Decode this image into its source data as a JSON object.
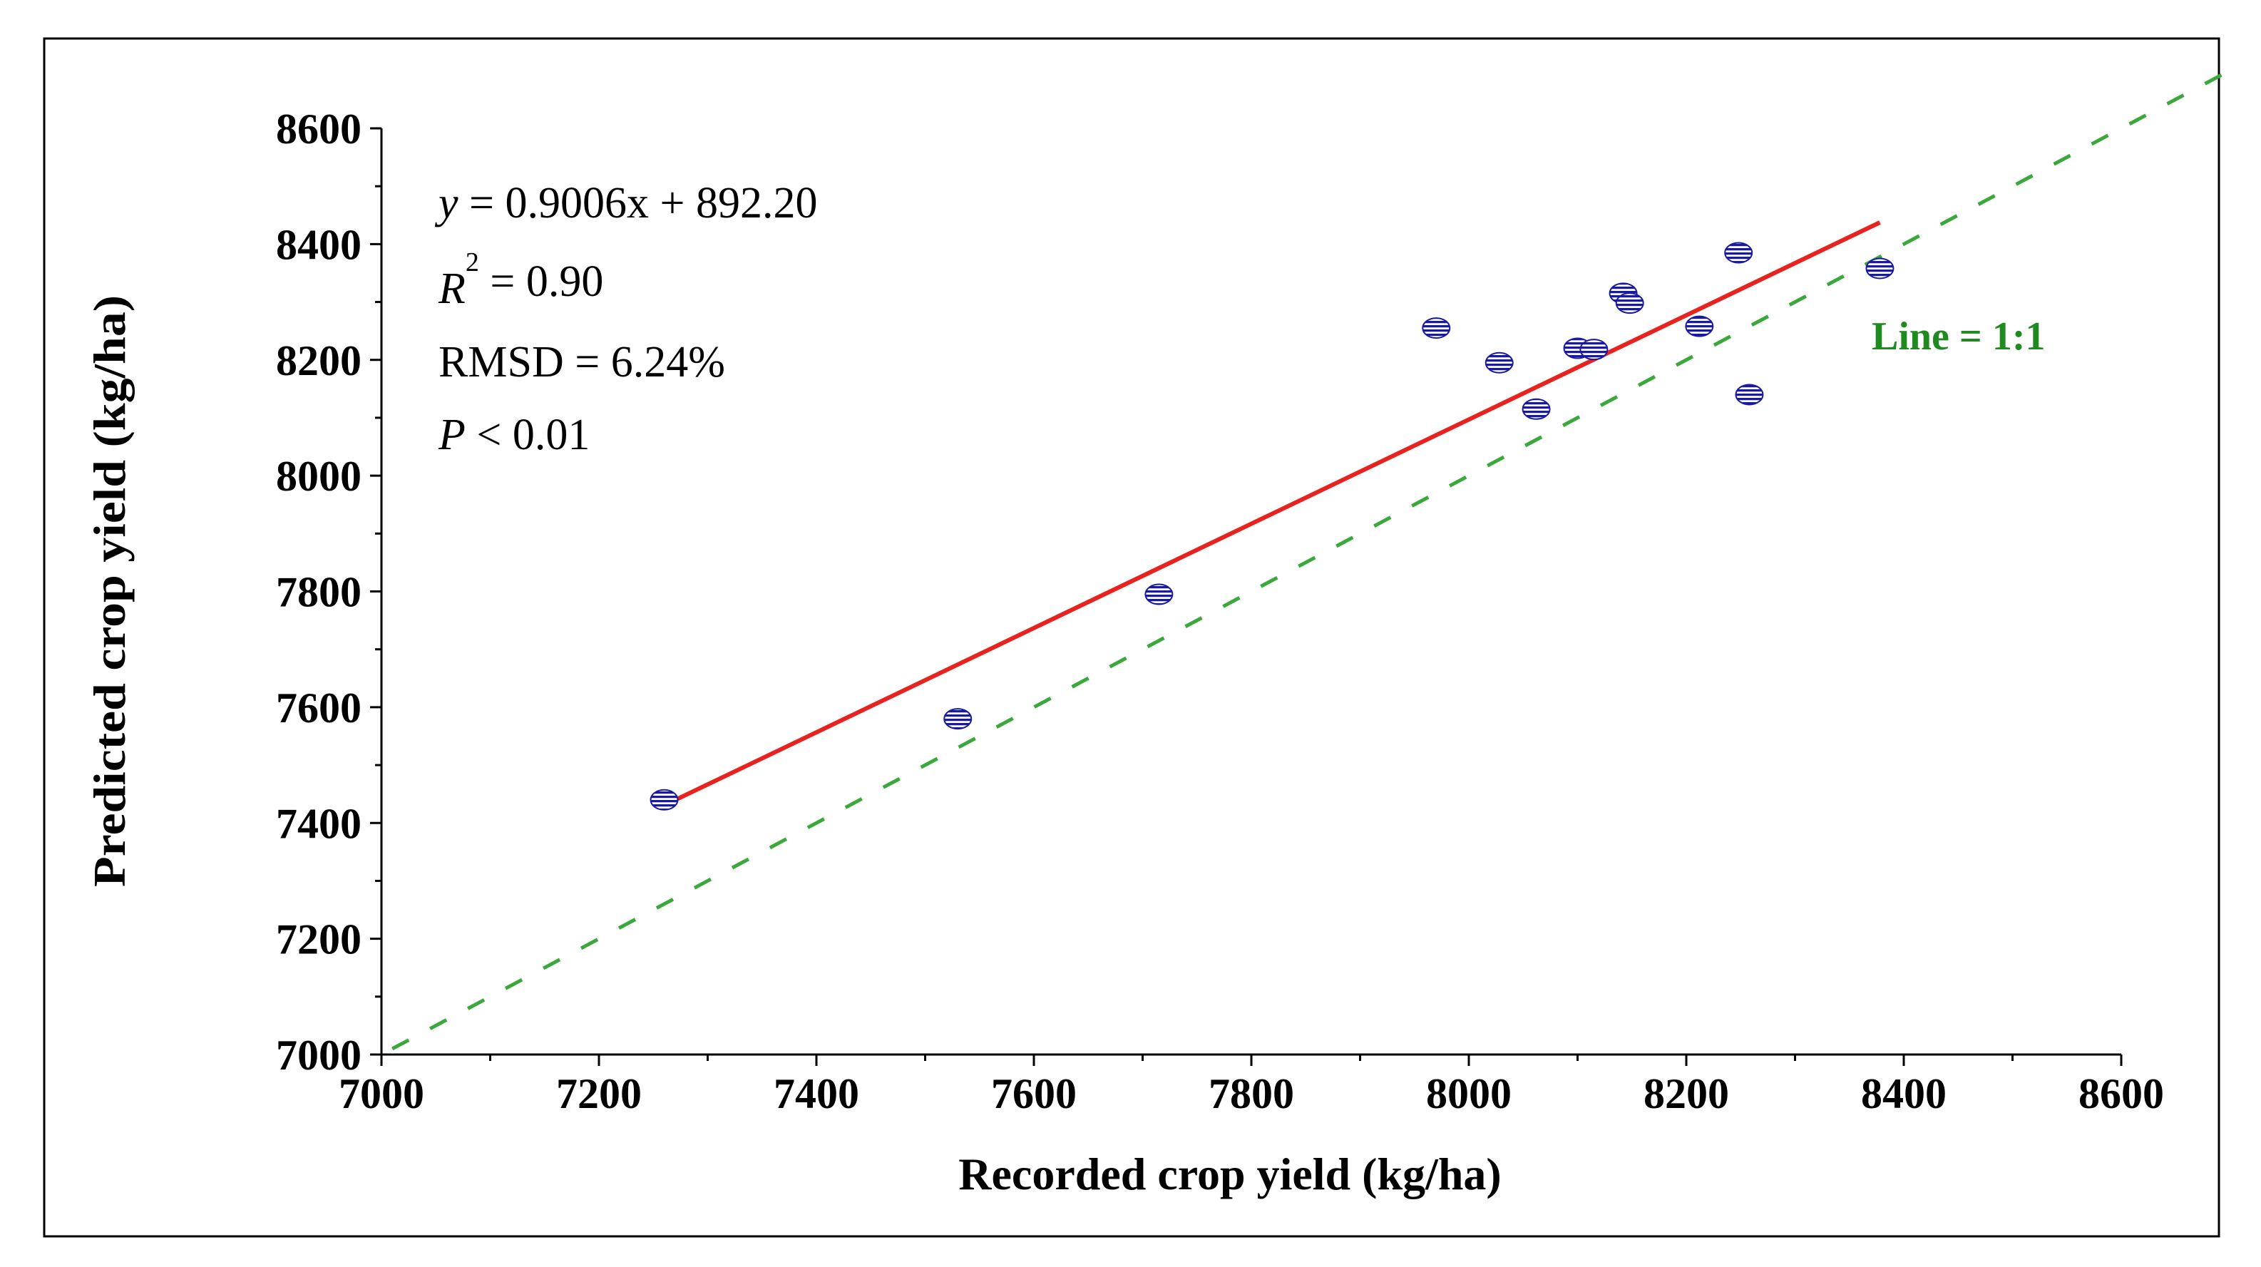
{
  "chart_data": {
    "type": "scatter",
    "xlabel": "Recorded crop yield (kg/ha)",
    "ylabel": "Predicted crop yield (kg/ha)",
    "xlim": [
      7000,
      8600
    ],
    "ylim": [
      7000,
      8600
    ],
    "x_ticks": [
      "7000",
      "7200",
      "7400",
      "7600",
      "7800",
      "8000",
      "8200",
      "8400",
      "8600"
    ],
    "y_ticks": [
      "7000",
      "7200",
      "7400",
      "7600",
      "7800",
      "8000",
      "8200",
      "8400",
      "8600"
    ],
    "points": [
      {
        "x": 7260,
        "y": 7440
      },
      {
        "x": 7530,
        "y": 7580
      },
      {
        "x": 7715,
        "y": 7795
      },
      {
        "x": 7970,
        "y": 8255
      },
      {
        "x": 8028,
        "y": 8195
      },
      {
        "x": 8062,
        "y": 8115
      },
      {
        "x": 8100,
        "y": 8220
      },
      {
        "x": 8115,
        "y": 8218
      },
      {
        "x": 8142,
        "y": 8315
      },
      {
        "x": 8148,
        "y": 8298
      },
      {
        "x": 8212,
        "y": 8258
      },
      {
        "x": 8248,
        "y": 8385
      },
      {
        "x": 8258,
        "y": 8140
      },
      {
        "x": 8378,
        "y": 8358
      }
    ],
    "fit_line": {
      "slope": 0.9006,
      "intercept": 892.2,
      "x_start": 7260,
      "x_end": 8378,
      "color": "#e8231f"
    },
    "reference_line": {
      "label": "Line = 1:1",
      "x_start": 7010,
      "x_end": 8700,
      "color": "#3aa83a"
    },
    "marker_color": "#1a1aa0",
    "annotations": {
      "equation": {
        "var": "y",
        "rest": " = 0.9006x + 892.20"
      },
      "r2": {
        "var": "R",
        "sup": "2",
        "rest": " = 0.90"
      },
      "rmsd": "RMSD = 6.24%",
      "p": {
        "var": "P",
        "rest": " < 0.01"
      }
    }
  }
}
